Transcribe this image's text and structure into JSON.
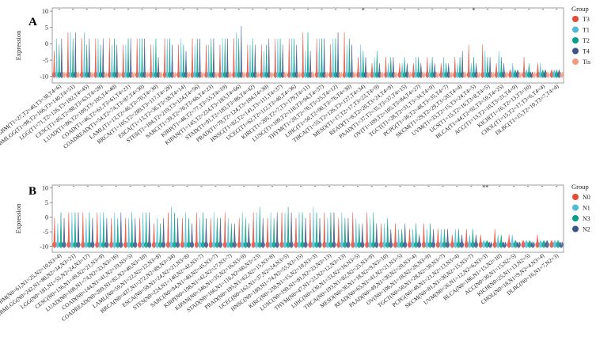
{
  "colors": {
    "T3": "#E64B35",
    "T1": "#4DBBD5",
    "T2": "#00A087",
    "T4": "#3C5488",
    "Tis": "#F39B7F",
    "N0": "#E64B35",
    "N1": "#4DBBD5",
    "N3": "#00A087",
    "N2": "#3C5488"
  },
  "chart_data": [
    {
      "type": "violin",
      "panel": "A",
      "ylabel": "Expression",
      "yticks": [
        10,
        5,
        0,
        -5,
        -10
      ],
      "ylim": [
        -12,
        11
      ],
      "legend": {
        "title": "Group",
        "entries": [
          "T3",
          "T1",
          "T2",
          "T4",
          "Tis"
        ],
        "placement": "right"
      },
      "groups": [
        "T3",
        "T1",
        "T2",
        "T4",
        "Tis"
      ],
      "categories": [
        "GBM(T1=27,T2=40,T3=38,T4=6)",
        "GBMLGG(T1=98,T2=166,T3=140,T4=51)",
        "LGG(T1=71,T2=126,T3=102,T4=45)",
        "CESC(T1=85,T2=88,T3=63,T4=28)",
        "LUAD(T1=86,T2=109,T3=105,T4=40)",
        "COAD(T1=46,T2=61,T3=61,T4=21)",
        "COADREAD(T1=54,T2=74,T3=87,T4=30)",
        "LAML(T1=13,T2=46,T3=70,T4=30)",
        "BRCA(T1=105,T2=289,T3=117,T4=28)",
        "ESCA(T1=13,T2=36,T3=38,T4=14)",
        "STES(T1=104,T2=219,T3=124,T4=56)",
        "SARC(T1=39,T2=70,T3=66,T4=23)",
        "KIRP(T1=48,T2=77,T3=55,T4=19)",
        "KIPAN(T1=145,T2=224,T3=183,T4=66)",
        "STAD(T1=91,T2=183,T3=86,T4=42)",
        "PRAD(T1=79,T2=124,T3=104,T4=30)",
        "HNSC(T1=82,T2=141,T3=111,T4=37)",
        "UCEC(T1=62,T2=112,T3=40,T4=36)",
        "KIRC(T1=205,T2=7,T3=179,T4=11)",
        "LUSC(T1=109,T2=110,T3=94,T4=37)",
        "THYM(T1=20,T2=70,T3=25,T4=12)",
        "LIHC(T1=50,T2=90,T3=76,T4=30)",
        "THCA(T1=55,T2=126,T3=127,T4=34)",
        "MESO(T1=17,T2=17,T3=23,T4=9)",
        "READ(T1=8,T2=20,T3=24,T4=9)",
        "PAAD(T1=37,T2=35,T3=37,T4=15)",
        "OV(T1=109,T2=105,T3=84,T4=27)",
        "TGCT(T1=28,T2=31,T3=34,T4=9)",
        "PCPG(T1=36,T2=48,T3=35,T4=7)",
        "SKCM(T1=29,T2=29,T3=20,T4=4)",
        "UVM(T1=33,T2=15,T3=24,T4=5)",
        "UCS(T1=15,T2=16,T3=8,T4=5)",
        "BLCA(T1=44,T2=92,T3=59,T4=25)",
        "ACC(T1=13,T2=10,T3=21,T4=9)",
        "KICH(T1=16,T2=13,T3=10)",
        "CHOL(T1=15,T2=17,T3=6,T4=4)",
        "DLBC(T1=15,T2=10,T3=7,T4=4)"
      ],
      "significance": [
        "-",
        "-",
        "-",
        "-",
        "-",
        "-",
        "-",
        "-",
        "-",
        "-",
        "-",
        "-",
        "-",
        "-",
        "-",
        "-",
        "-",
        "-",
        "-",
        "-",
        "-",
        "-",
        "*",
        "-",
        "-",
        "-",
        "-",
        "-",
        "-",
        "-",
        "*",
        "-",
        "-",
        "-",
        "-",
        "-",
        "-"
      ],
      "violins": [
        [
          4,
          6,
          5,
          6,
          0
        ],
        [
          7,
          7,
          6,
          7,
          0
        ],
        [
          6,
          7,
          5,
          6,
          0
        ],
        [
          6,
          6,
          5,
          6,
          0
        ],
        [
          6,
          5,
          6,
          5,
          0
        ],
        [
          5,
          5,
          6,
          6,
          0
        ],
        [
          6,
          6,
          6,
          6,
          0
        ],
        [
          5,
          5,
          6,
          3,
          0
        ],
        [
          6,
          6,
          6,
          5,
          0
        ],
        [
          5,
          6,
          5,
          4,
          0
        ],
        [
          6,
          5,
          6,
          6,
          0
        ],
        [
          5,
          5,
          6,
          6,
          0
        ],
        [
          5,
          6,
          6,
          6,
          0
        ],
        [
          6,
          7,
          6,
          8,
          0
        ],
        [
          5,
          5,
          6,
          5,
          0
        ],
        [
          5,
          4,
          5,
          6,
          0
        ],
        [
          6,
          6,
          6,
          5,
          0
        ],
        [
          6,
          6,
          6,
          5,
          0
        ],
        [
          7,
          4,
          7,
          4,
          0
        ],
        [
          6,
          6,
          6,
          6,
          0
        ],
        [
          5,
          6,
          6,
          7,
          0
        ],
        [
          7,
          5,
          6,
          5,
          0
        ],
        [
          3,
          5,
          4,
          3,
          0
        ],
        [
          2,
          3,
          4,
          2,
          0
        ],
        [
          3,
          2,
          3,
          3,
          0
        ],
        [
          2,
          2,
          3,
          2,
          0
        ],
        [
          2,
          3,
          3,
          2,
          0
        ],
        [
          3,
          2,
          3,
          2,
          0
        ],
        [
          2,
          3,
          2,
          2,
          0
        ],
        [
          3,
          2,
          3,
          4,
          0
        ],
        [
          5,
          2,
          3,
          2,
          0
        ],
        [
          5,
          4,
          3,
          3,
          0
        ],
        [
          2,
          4,
          3,
          2,
          0
        ],
        [
          1,
          2,
          1,
          1,
          0
        ],
        [
          3,
          1,
          2,
          0,
          0
        ],
        [
          2,
          2,
          1,
          1,
          0
        ],
        [
          1,
          1,
          1,
          1,
          0
        ]
      ]
    },
    {
      "type": "violin",
      "panel": "B",
      "ylabel": "Expression",
      "yticks": [
        10,
        5,
        0,
        -5,
        -10
      ],
      "ylim": [
        -12,
        11
      ],
      "legend": {
        "title": "Group",
        "entries": [
          "N0",
          "N1",
          "N3",
          "N2"
        ],
        "placement": "right"
      },
      "groups": [
        "N0",
        "N1",
        "N3",
        "N2"
      ],
      "categories": [
        "GBM(N0=61,N1=25,N2=10,N3=4)",
        "GBMLGG(N0=242,N1=80,N2=34,N3=21)",
        "LGG(N0=181,N1=55,N2=24,N3=17)",
        "CESC(N0=136,N1=49,N2=21,N3=9)",
        "LUAD(N0=108,N1=74,N2=33,N3=16)",
        "COAD(N0=144,N1=41,N2=19,N3=5)",
        "COADREAD(N0=209,N1=82,N2=40,N3=10)",
        "LAML(N0=59,N1=22,N2=12,N3=8)",
        "BRCA(N0=437,N1=272,N2=89,N3=34)",
        "ESCA(N0=58,N1=24,N2=21,N3=8)",
        "STES(N0=224,N1=140,N2=42,N3=7)",
        "SARC(N0=94,N1=40,N2=45,N3=7)",
        "KIRP(N0=198,N1=42,N2=27,N3=7)",
        "KIPAN(N0=346,N1=35,N2=16,N3=9)",
        "STAD(N0=166,N1=116,N2=60,N3=23)",
        "PRAD(N0=195,N1=62,N2=15,N3=8)",
        "UCEC(N0=162,N1=37,N2=24,N3=5)",
        "HNSC(N0=189,N1=74,N2=55,N3=15)",
        "KIRC(N0=238,N1=15,N2=10,N3=3)",
        "LUSC(N0=199,N1=81,N2=33,N3=13)",
        "THYM(N0=47,N1=23,N2=12,N3=13)",
        "LIHC(N0=130,N1=33,N2=16,N3=5)",
        "THCA(N0=193,N1=82,N2=25,N3=9)",
        "MESO(N0=30,N1=18,N2=9,N3=10)",
        "READ(N0=65,N1=41,N2=21,N3=5)",
        "PAAD(N0=49,N1=30,N2=20,N3=4)",
        "OV(N0=106,N1=18,N2=26,N3=9)",
        "TGCT(N0=50,N1=28,N2=30,N3=7)",
        "PCPG(N0=48,N1=21,N2=13,N3=4)",
        "SKCM(N0=81,N1=30,N2=15,N3=7)",
        "UVM(N0=26,N1=12,N2=6,N3=3)",
        "BLCA(N0=186,N1=15,N2=10)",
        "ACC(N0=30,N1=15,N2=5)",
        "KICH(N0=25,N1=13,N2=5)",
        "CHOL(N0=18,N1=9,N2=4,N3=4)",
        "DLBC(N0=16,N1=7,N2=3)"
      ],
      "significance": [
        "-",
        "-",
        "-",
        "-",
        "-",
        "-",
        "-",
        "-",
        "-",
        "-",
        "-",
        "-",
        "-",
        "-",
        "-",
        "-",
        "-",
        "-",
        "-",
        "-",
        "-",
        "-",
        "-",
        "-",
        "-",
        "-",
        "-",
        "-",
        "-",
        "-",
        "**",
        "-",
        "-",
        "-",
        "-",
        "-"
      ],
      "violins": [
        [
          5,
          4,
          6,
          5
        ],
        [
          6,
          6,
          6,
          6
        ],
        [
          6,
          5,
          6,
          5
        ],
        [
          6,
          6,
          6,
          5
        ],
        [
          5,
          6,
          5,
          6
        ],
        [
          5,
          5,
          6,
          5
        ],
        [
          5,
          6,
          6,
          6
        ],
        [
          4,
          5,
          4,
          5
        ],
        [
          6,
          7,
          6,
          5
        ],
        [
          5,
          6,
          5,
          4
        ],
        [
          6,
          5,
          6,
          5
        ],
        [
          5,
          6,
          5,
          5
        ],
        [
          6,
          5,
          4,
          4
        ],
        [
          5,
          6,
          5,
          4
        ],
        [
          6,
          6,
          7,
          5
        ],
        [
          5,
          6,
          5,
          6
        ],
        [
          6,
          6,
          7,
          6
        ],
        [
          5,
          6,
          6,
          5
        ],
        [
          6,
          7,
          6,
          5
        ],
        [
          6,
          5,
          6,
          6
        ],
        [
          5,
          6,
          5,
          5
        ],
        [
          6,
          5,
          4,
          4
        ],
        [
          6,
          5,
          6,
          4
        ],
        [
          4,
          4,
          5,
          3
        ],
        [
          4,
          3,
          3,
          4
        ],
        [
          3,
          3,
          4,
          2
        ],
        [
          4,
          3,
          4,
          3
        ],
        [
          3,
          3,
          3,
          3
        ],
        [
          2,
          3,
          3,
          2
        ],
        [
          3,
          2,
          3,
          2
        ],
        [
          2,
          1,
          1,
          0
        ],
        [
          3,
          2,
          2,
          0
        ],
        [
          2,
          2,
          1,
          0
        ],
        [
          1,
          1,
          1,
          0
        ],
        [
          2,
          1,
          1,
          1
        ],
        [
          1,
          1,
          1,
          0
        ]
      ]
    }
  ]
}
